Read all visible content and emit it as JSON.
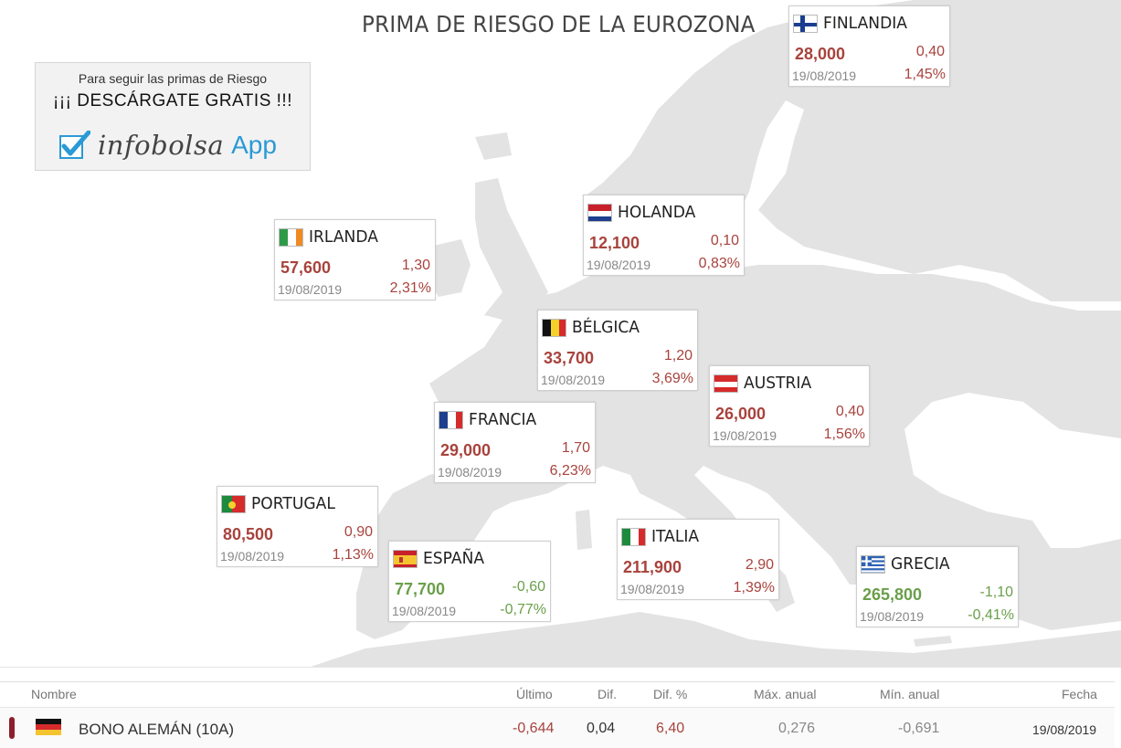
{
  "page": {
    "title": "PRIMA DE RIESGO DE LA EUROZONA"
  },
  "promo": {
    "line1": "Para seguir las primas de Riesgo",
    "line2": "¡¡¡ DESCÁRGATE GRATIS !!!",
    "brand": "infobolsa",
    "app": "App",
    "brand_color": "#2a9ad6"
  },
  "colors": {
    "negative": "#a8433d",
    "positive": "#6a9f4a",
    "land": "#e3e3e3",
    "row_marker": "#8b1f2b"
  },
  "countries": {
    "finlandia": {
      "name": "FINLANDIA",
      "price": "28,000",
      "diff": "0,40",
      "date": "19/08/2019",
      "pct": "1,45%",
      "flag": "finland-flag"
    },
    "holanda": {
      "name": "HOLANDA",
      "price": "12,100",
      "diff": "0,10",
      "date": "19/08/2019",
      "pct": "0,83%",
      "flag": "netherlands-flag"
    },
    "irlanda": {
      "name": "IRLANDA",
      "price": "57,600",
      "diff": "1,30",
      "date": "19/08/2019",
      "pct": "2,31%",
      "flag": "ireland-flag"
    },
    "belgica": {
      "name": "BÉLGICA",
      "price": "33,700",
      "diff": "1,20",
      "date": "19/08/2019",
      "pct": "3,69%",
      "flag": "belgium-flag"
    },
    "austria": {
      "name": "AUSTRIA",
      "price": "26,000",
      "diff": "0,40",
      "date": "19/08/2019",
      "pct": "1,56%",
      "flag": "austria-flag"
    },
    "francia": {
      "name": "FRANCIA",
      "price": "29,000",
      "diff": "1,70",
      "date": "19/08/2019",
      "pct": "6,23%",
      "flag": "france-flag"
    },
    "portugal": {
      "name": "PORTUGAL",
      "price": "80,500",
      "diff": "0,90",
      "date": "19/08/2019",
      "pct": "1,13%",
      "flag": "portugal-flag"
    },
    "espana": {
      "name": "ESPAÑA",
      "price": "77,700",
      "diff": "-0,60",
      "date": "19/08/2019",
      "pct": "-0,77%",
      "flag": "spain-flag"
    },
    "italia": {
      "name": "ITALIA",
      "price": "211,900",
      "diff": "2,90",
      "date": "19/08/2019",
      "pct": "1,39%",
      "flag": "italy-flag"
    },
    "grecia": {
      "name": "GRECIA",
      "price": "265,800",
      "diff": "-1,10",
      "date": "19/08/2019",
      "pct": "-0,41%",
      "flag": "greece-flag"
    }
  },
  "table": {
    "headers": {
      "nombre": "Nombre",
      "ultimo": "Último",
      "dif": "Dif.",
      "dif_pct": "Dif. %",
      "max": "Máx. anual",
      "min": "Mín. anual",
      "fecha": "Fecha"
    },
    "row": {
      "nombre": "BONO ALEMÁN (10A)",
      "ultimo": "-0,644",
      "dif": "0,04",
      "dif_pct": "6,40",
      "max": "0,276",
      "min": "-0,691",
      "fecha": "19/08/2019",
      "flag": "germany-flag"
    }
  }
}
